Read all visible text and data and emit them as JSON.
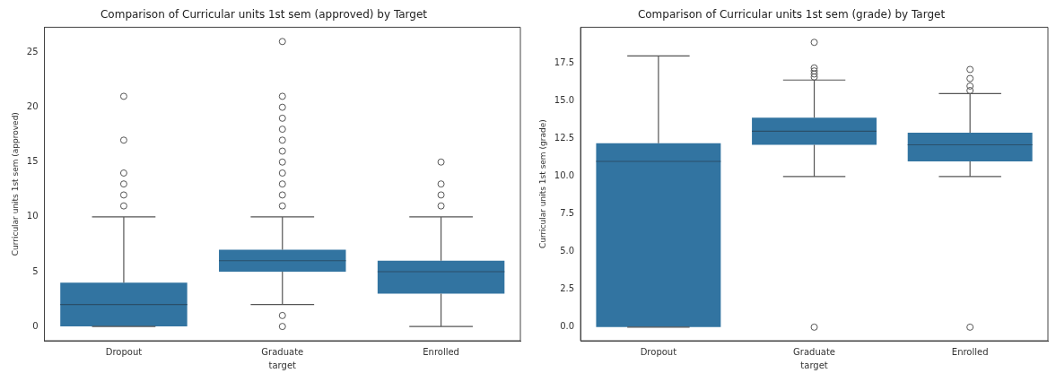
{
  "chart_data": [
    {
      "type": "box",
      "title": "Comparison of Curricular units 1st sem (approved) by Target",
      "xlabel": "target",
      "ylabel": "Curricular units 1st sem (approved)",
      "categories": [
        "Dropout",
        "Graduate",
        "Enrolled"
      ],
      "ylim": [
        -1.3,
        27.3
      ],
      "yticks": [
        0,
        5,
        10,
        15,
        20,
        25
      ],
      "grid": false,
      "series": [
        {
          "color": "#3274a1",
          "boxes": [
            {
              "low": 0,
              "q1": 0,
              "median": 2,
              "q3": 4,
              "high": 10,
              "outliers": [
                11,
                12,
                13,
                14,
                17,
                21
              ]
            },
            {
              "low": 2,
              "q1": 5,
              "median": 6,
              "q3": 7,
              "high": 10,
              "outliers": [
                0,
                1,
                11,
                12,
                13,
                14,
                15,
                16,
                17,
                18,
                19,
                20,
                21,
                26
              ]
            },
            {
              "low": 0,
              "q1": 3,
              "median": 5,
              "q3": 6,
              "high": 10,
              "outliers": [
                11,
                12,
                13,
                15
              ]
            }
          ]
        }
      ]
    },
    {
      "type": "box",
      "title": "Comparison of Curricular units 1st sem (grade) by Target",
      "xlabel": "target",
      "ylabel": "Curricular units 1st sem (grade)",
      "categories": [
        "Dropout",
        "Graduate",
        "Enrolled"
      ],
      "ylim": [
        -0.9,
        19.9
      ],
      "yticks": [
        {
          "value": 0,
          "label": "0.0"
        },
        2.5,
        {
          "value": 5,
          "label": "5.0"
        },
        7.5,
        {
          "value": 10,
          "label": "10.0"
        },
        12.5,
        {
          "value": 15,
          "label": "15.0"
        },
        17.5
      ],
      "grid": false,
      "series": [
        {
          "color": "#3274a1",
          "boxes": [
            {
              "low": 0,
              "q1": 0,
              "median": 11,
              "q3": 12.2,
              "high": 18
            },
            {
              "low": 10,
              "q1": 12.1,
              "median": 13,
              "q3": 13.9,
              "high": 16.4,
              "outliers": [
                0,
                16.6,
                16.8,
                17,
                17.2,
                18.9
              ]
            },
            {
              "low": 10,
              "q1": 11,
              "median": 12.1,
              "q3": 12.9,
              "high": 15.5,
              "outliers": [
                0,
                15.7,
                16,
                16.5,
                17.1
              ]
            }
          ]
        }
      ]
    }
  ]
}
